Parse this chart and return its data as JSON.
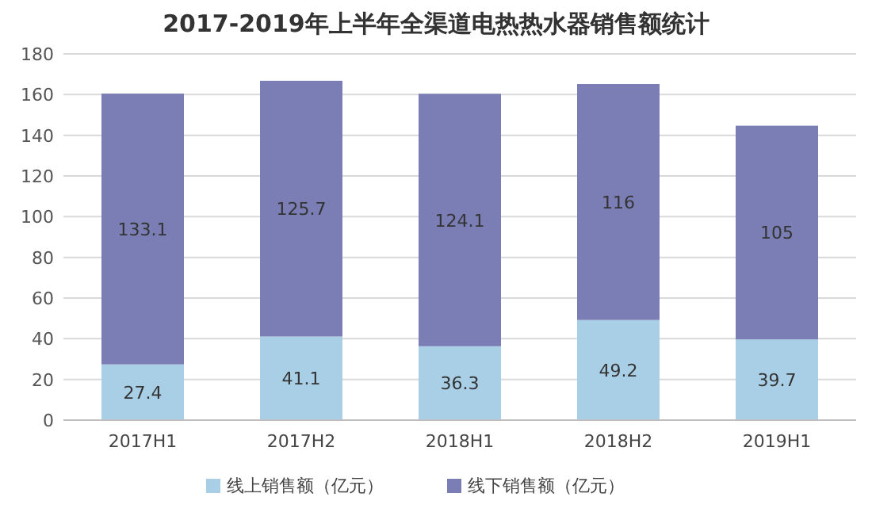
{
  "chart_data": {
    "type": "bar",
    "title": "2017-2019年上半年全渠道电热热水器销售额统计",
    "categories": [
      "2017H1",
      "2017H2",
      "2018H1",
      "2018H2",
      "2019H1"
    ],
    "series": [
      {
        "name": "线上销售额（亿元）",
        "color": "#a9cfe6",
        "values": [
          27.4,
          41.1,
          36.3,
          49.2,
          39.7
        ]
      },
      {
        "name": "线下销售额（亿元）",
        "color": "#7a7eb4",
        "values": [
          133.1,
          125.7,
          124.1,
          116,
          105
        ]
      }
    ],
    "stacked": true,
    "ylim": [
      0,
      180
    ],
    "yticks": [
      0,
      20,
      40,
      60,
      80,
      100,
      120,
      140,
      160,
      180
    ],
    "grid": "y",
    "legend": "bottom",
    "data_labels": true
  }
}
